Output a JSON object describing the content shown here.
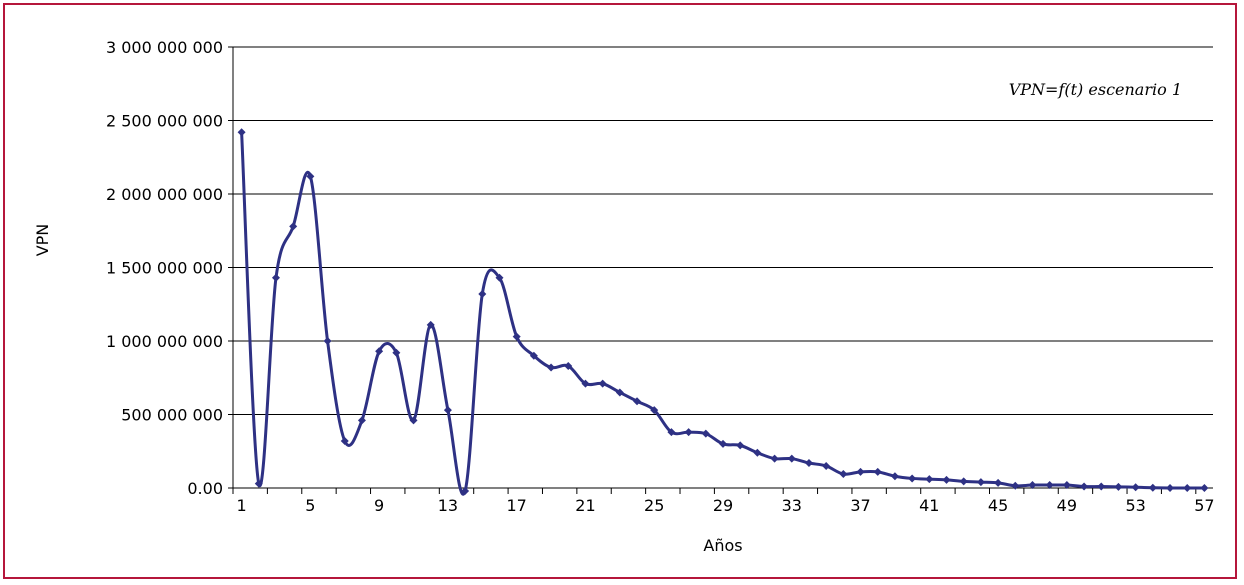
{
  "chart_data": {
    "type": "line",
    "title": "",
    "annotation": "VPN=f(t) escenario 1",
    "xlabel": "Años",
    "ylabel": "VPN",
    "ylim": [
      0,
      3000000000
    ],
    "y_ticks": [
      0,
      500000000,
      1000000000,
      1500000000,
      2000000000,
      2500000000,
      3000000000
    ],
    "y_tick_labels": [
      "0.00",
      "500 000 000",
      "1 000 000 000",
      "1 500 000 000",
      "2 000 000 000",
      "2 500 000 000",
      "3 000 000 000"
    ],
    "x_tick_labels": [
      "1",
      "5",
      "9",
      "13",
      "17",
      "21",
      "25",
      "29",
      "33",
      "37",
      "41",
      "45",
      "49",
      "53",
      "57"
    ],
    "grid": "horizontal",
    "line_color": "#2e3184",
    "frame_color": "#b5163b",
    "series": [
      {
        "x": [
          1,
          2,
          3,
          4,
          5,
          6,
          7,
          8,
          9,
          10,
          11,
          12,
          13,
          14,
          15,
          16,
          17,
          18,
          19,
          20,
          21,
          22,
          23,
          24,
          25,
          26,
          27,
          28,
          29,
          30,
          31,
          32,
          33,
          34,
          35,
          36,
          37,
          38,
          39,
          40,
          41,
          42,
          43,
          44,
          45,
          46,
          47,
          48,
          49,
          50,
          51,
          52,
          53,
          54,
          55,
          56,
          57
        ],
        "values": [
          2420000000,
          30000000,
          1430000000,
          1780000000,
          2120000000,
          1000000000,
          320000000,
          460000000,
          930000000,
          920000000,
          460000000,
          1110000000,
          530000000,
          -20000000,
          1320000000,
          1430000000,
          1030000000,
          900000000,
          820000000,
          830000000,
          710000000,
          710000000,
          650000000,
          590000000,
          530000000,
          380000000,
          380000000,
          370000000,
          300000000,
          290000000,
          240000000,
          200000000,
          200000000,
          170000000,
          150000000,
          95000000,
          110000000,
          110000000,
          80000000,
          65000000,
          60000000,
          55000000,
          45000000,
          40000000,
          35000000,
          15000000,
          20000000,
          20000000,
          20000000,
          10000000,
          10000000,
          8000000,
          5000000,
          2000000,
          0,
          0,
          0
        ]
      }
    ]
  }
}
